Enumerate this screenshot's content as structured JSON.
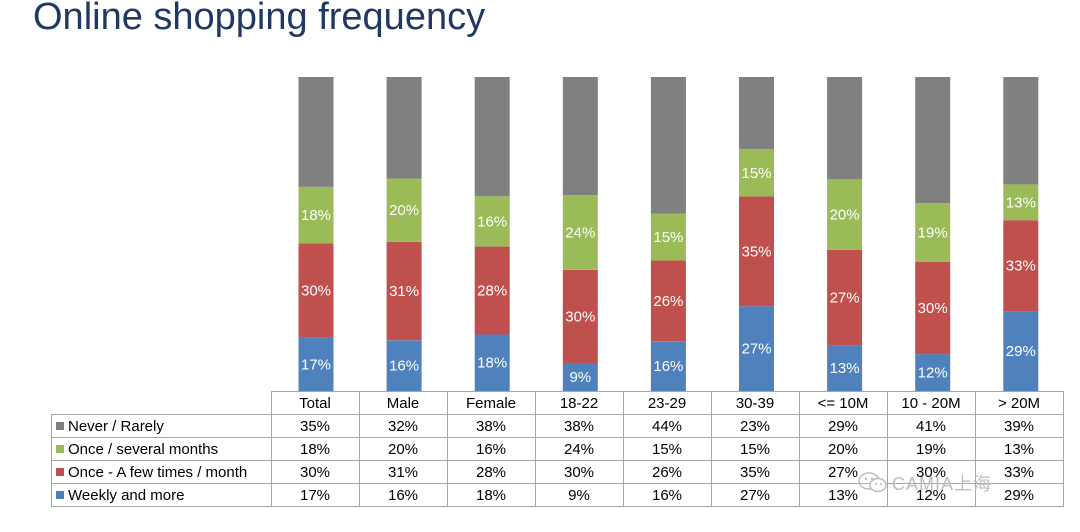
{
  "title": "Online shopping frequency",
  "watermark": "CAMIA上海",
  "colors": {
    "Never / Rarely": "#808080",
    "Once / several months": "#9bbb59",
    "Once - A few times / month": "#c0504d",
    "Weekly and more": "#4f81bd"
  },
  "chart_data": {
    "type": "bar",
    "stacked": true,
    "percent_stacked": true,
    "title": "Online shopping frequency",
    "xlabel": "",
    "ylabel": "",
    "categories": [
      "Total",
      "Male",
      "Female",
      "18-22",
      "23-29",
      "30-39",
      "<= 10M",
      "10 - 20M",
      "> 20M"
    ],
    "series": [
      {
        "name": "Weekly and more",
        "values": [
          17,
          16,
          18,
          9,
          16,
          27,
          13,
          12,
          29
        ]
      },
      {
        "name": "Once - A few times / month",
        "values": [
          30,
          31,
          28,
          30,
          26,
          35,
          27,
          30,
          33
        ]
      },
      {
        "name": "Once / several months",
        "values": [
          18,
          20,
          16,
          24,
          15,
          15,
          20,
          19,
          13
        ]
      },
      {
        "name": "Never / Rarely",
        "values": [
          35,
          32,
          38,
          38,
          44,
          23,
          29,
          41,
          39
        ]
      }
    ],
    "data_labels_shown_for": [
      "Weekly and more",
      "Once - A few times / month",
      "Once / several months"
    ],
    "legend": "data-table",
    "grid": false
  },
  "table": {
    "row_order": [
      "Never / Rarely",
      "Once / several months",
      "Once - A few times / month",
      "Weekly and more"
    ],
    "rows": [
      {
        "label": "Never / Rarely",
        "cells": [
          "35%",
          "32%",
          "38%",
          "38%",
          "44%",
          "23%",
          "29%",
          "41%",
          "39%"
        ]
      },
      {
        "label": "Once / several months",
        "cells": [
          "18%",
          "20%",
          "16%",
          "24%",
          "15%",
          "15%",
          "20%",
          "19%",
          "13%"
        ]
      },
      {
        "label": "Once - A few times / month",
        "cells": [
          "30%",
          "31%",
          "28%",
          "30%",
          "26%",
          "35%",
          "27%",
          "30%",
          "33%"
        ]
      },
      {
        "label": "Weekly and more",
        "cells": [
          "17%",
          "16%",
          "18%",
          "9%",
          "16%",
          "27%",
          "13%",
          "12%",
          "29%"
        ]
      }
    ]
  }
}
